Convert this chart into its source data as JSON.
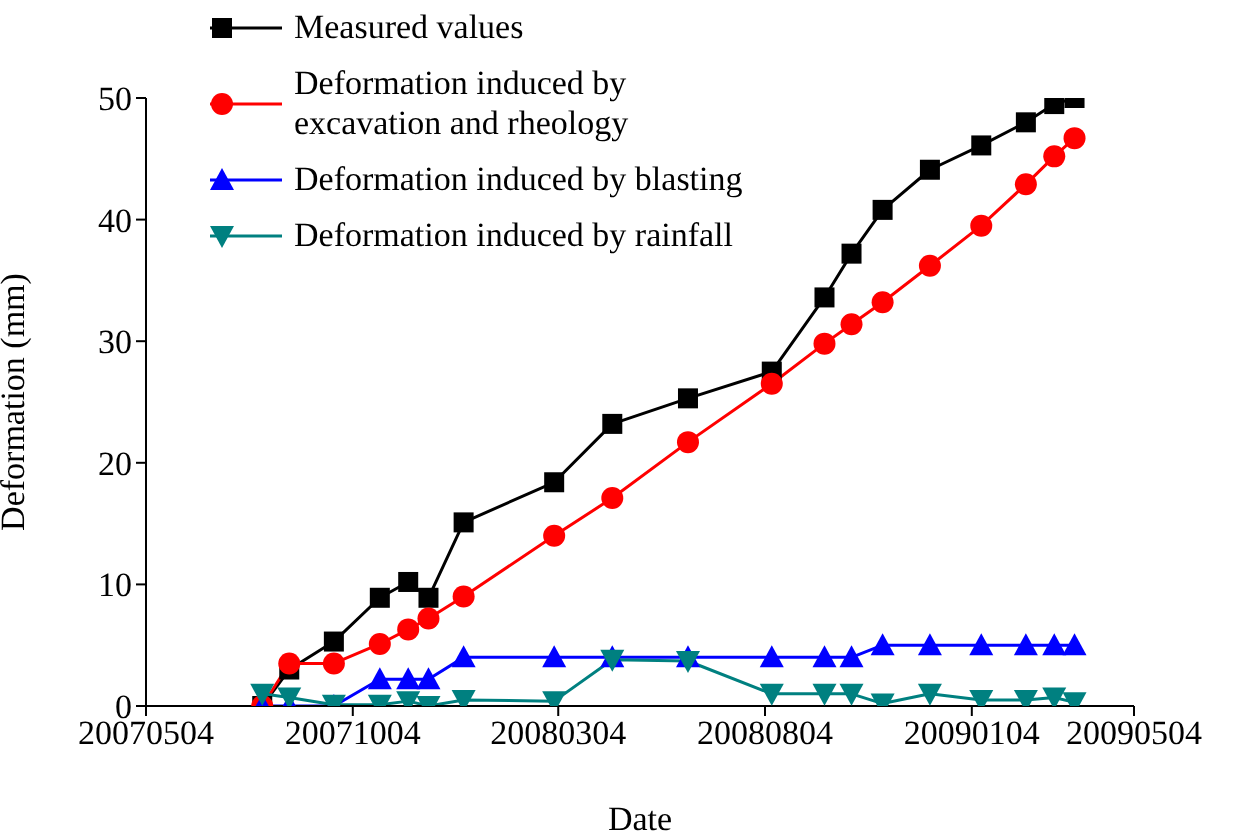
{
  "chart_data": {
    "type": "line",
    "xlabel": "Date",
    "ylabel": "Deformation (mm)",
    "x": [
      "2007-07-29",
      "2007-08-18",
      "2007-09-20",
      "2007-10-24",
      "2007-11-14",
      "2007-11-29",
      "2007-12-25",
      "2008-03-01",
      "2008-04-13",
      "2008-06-08",
      "2008-08-09",
      "2008-09-17",
      "2008-10-07",
      "2008-10-30",
      "2008-12-04",
      "2009-01-11",
      "2009-02-13",
      "2009-03-06",
      "2009-03-21"
    ],
    "xlim": [
      "2007-05-04",
      "2009-05-04"
    ],
    "xticks": [
      {
        "value": "2007-05-04",
        "label": "20070504"
      },
      {
        "value": "2007-10-04",
        "label": "20071004"
      },
      {
        "value": "2008-03-04",
        "label": "20080304"
      },
      {
        "value": "2008-08-04",
        "label": "20080804"
      },
      {
        "value": "2009-01-04",
        "label": "20090104"
      },
      {
        "value": "2009-05-04",
        "label": "20090504"
      }
    ],
    "ylim": [
      0,
      50
    ],
    "yticks": [
      0,
      10,
      20,
      30,
      40,
      50
    ],
    "grid": false,
    "legend": "top left",
    "series": [
      {
        "name": "Measured values",
        "color": "#000000",
        "marker": "square",
        "values": [
          0,
          3.0,
          5.3,
          8.9,
          10.2,
          8.9,
          15.1,
          18.4,
          23.2,
          25.3,
          27.5,
          33.6,
          37.2,
          40.8,
          44.1,
          46.1,
          48.0,
          49.5,
          50.0
        ]
      },
      {
        "name": "Deformation induced by excavation and rheology",
        "color": "#ff0000",
        "marker": "circle",
        "values": [
          0,
          3.5,
          3.5,
          5.1,
          6.3,
          7.2,
          9.0,
          14.0,
          17.1,
          21.7,
          26.5,
          29.8,
          31.4,
          33.2,
          36.2,
          39.5,
          42.9,
          45.2,
          46.7
        ]
      },
      {
        "name": "Deformation induced by blasting",
        "color": "#0000ff",
        "marker": "triangle",
        "values": [
          0,
          0,
          0,
          2.2,
          2.2,
          2.2,
          4.0,
          4.0,
          4.0,
          4.0,
          4.0,
          4.0,
          4.0,
          5.0,
          5.0,
          5.0,
          5.0,
          5.0,
          5.0
        ]
      },
      {
        "name": "Deformation induced by rainfall",
        "color": "#008080",
        "marker": "triangle-down",
        "values": [
          1.0,
          0.7,
          0.1,
          0.1,
          0.4,
          0.0,
          0.5,
          0.4,
          3.8,
          3.7,
          1.0,
          1.0,
          1.0,
          0.2,
          1.0,
          0.5,
          0.5,
          0.7,
          0.3
        ]
      }
    ]
  }
}
